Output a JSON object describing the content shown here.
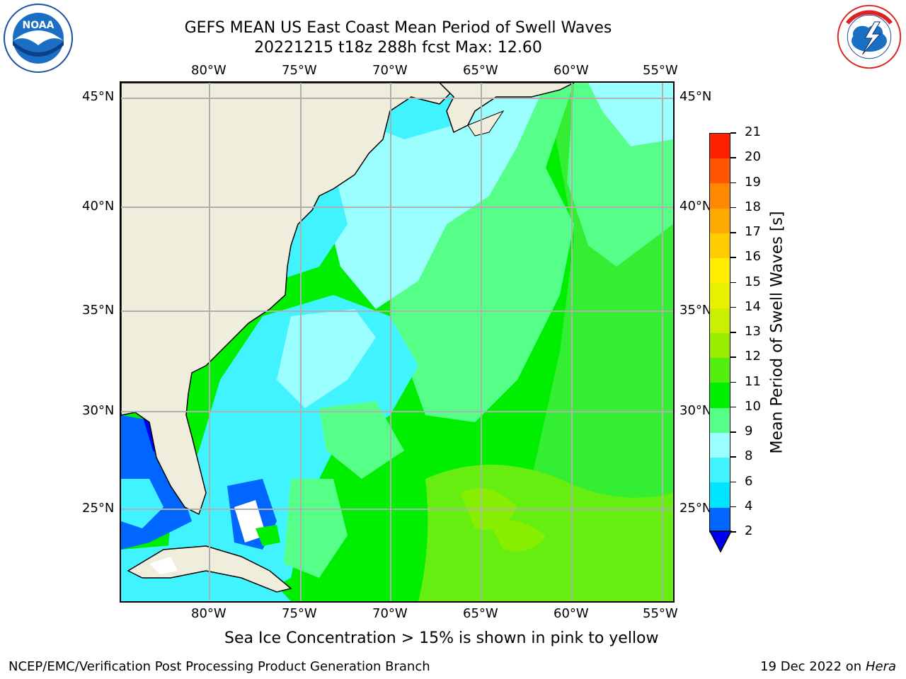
{
  "header": {
    "title_line1": "GEFS MEAN US East Coast Mean Period of Swell Waves",
    "title_line2": "20221215 t18z 288h fcst   Max: 12.60"
  },
  "logos": {
    "noaa": {
      "text": "NOAA",
      "ring_text": "NATIONAL OCEANIC AND ATMOSPHERIC ADMINISTRATION · U.S. DEPARTMENT OF COMMERCE",
      "icon": "noaa-seagull-logo"
    },
    "nws": {
      "ring_text": "NATIONAL WEATHER SERVICE",
      "icon": "nws-lightning-logo"
    }
  },
  "map": {
    "lon_labels": [
      "80°W",
      "75°W",
      "70°W",
      "65°W",
      "60°W",
      "55°W"
    ],
    "lat_labels": [
      "45°N",
      "40°N",
      "35°N",
      "30°N",
      "25°N"
    ],
    "projection": "lat-lon",
    "gridlines": true,
    "land_color": "#efeddc",
    "grid_color": "#b0b0b0"
  },
  "colorbar": {
    "title": "Mean Period of Swell Waves [s]",
    "ticks": [
      "2",
      "4",
      "6",
      "8",
      "9",
      "10",
      "11",
      "12",
      "13",
      "14",
      "15",
      "16",
      "17",
      "18",
      "19",
      "20",
      "21"
    ],
    "colors": [
      "#0066ff",
      "#00e5ff",
      "#40f3ff",
      "#9cffff",
      "#55ff88",
      "#00ee00",
      "#55ee11",
      "#99ee00",
      "#c8f000",
      "#e8f000",
      "#ffee00",
      "#ffcc00",
      "#ffaa00",
      "#ff8800",
      "#ff5500",
      "#ff2200"
    ],
    "extend_color": "#0000ee"
  },
  "note": "Sea Ice Concentration > 15% is shown in pink to yellow",
  "footer": {
    "left": "NCEP/EMC/Verification Post Processing Product Generation Branch",
    "right_date": "19 Dec 2022 on",
    "right_host": "Hera"
  }
}
